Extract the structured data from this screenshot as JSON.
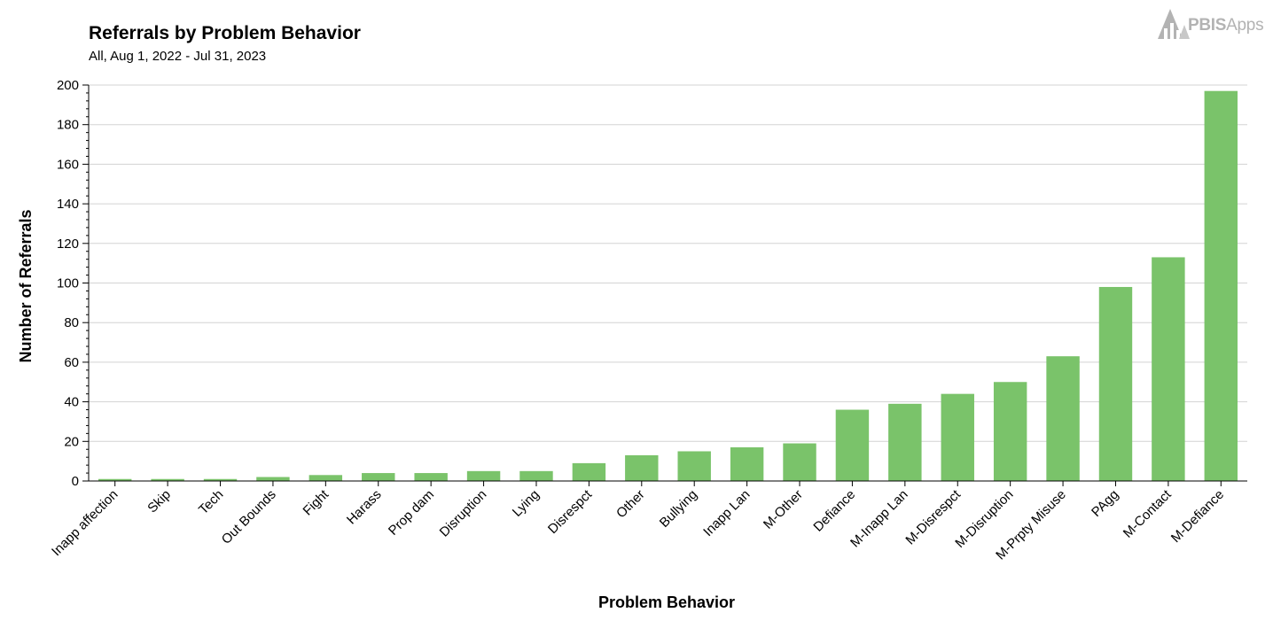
{
  "header": {
    "title": "Referrals by Problem Behavior",
    "subtitle": "All, Aug 1, 2022 - Jul 31, 2023"
  },
  "logo": {
    "brand_bold": "PBIS",
    "brand_light": "Apps",
    "icon": "pbis-apps-logo-icon",
    "color": "#b3b3b3"
  },
  "chart_data": {
    "type": "bar",
    "title": "Referrals by Problem Behavior",
    "subtitle": "All, Aug 1, 2022 - Jul 31, 2023",
    "xlabel": "Problem Behavior",
    "ylabel": "Number of Referrals",
    "ylim": [
      0,
      200
    ],
    "yticks": [
      0,
      20,
      40,
      60,
      80,
      100,
      120,
      140,
      160,
      180,
      200
    ],
    "grid": true,
    "bar_color": "#7ac36a",
    "categories": [
      "Inapp affection",
      "Skip",
      "Tech",
      "Out Bounds",
      "Fight",
      "Harass",
      "Prop dam",
      "Disruption",
      "Lying",
      "Disrespct",
      "Other",
      "Bullying",
      "Inapp Lan",
      "M-Other",
      "Defiance",
      "M-Inapp Lan",
      "M-Disrespct",
      "M-Disruption",
      "M-Prpty Misuse",
      "PAgg",
      "M-Contact",
      "M-Defiance"
    ],
    "values": [
      1,
      1,
      1,
      2,
      3,
      4,
      4,
      5,
      5,
      9,
      13,
      15,
      17,
      19,
      36,
      39,
      44,
      50,
      63,
      98,
      113,
      197
    ]
  }
}
